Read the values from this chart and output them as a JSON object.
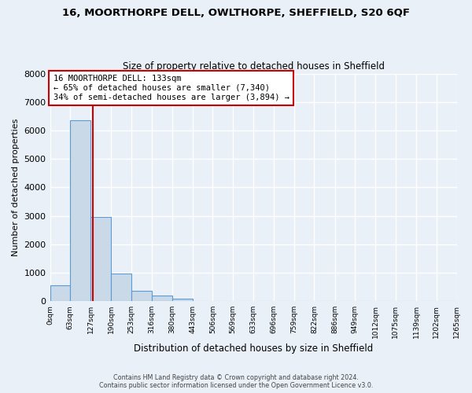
{
  "title": "16, MOORTHORPE DELL, OWLTHORPE, SHEFFIELD, S20 6QF",
  "subtitle": "Size of property relative to detached houses in Sheffield",
  "xlabel": "Distribution of detached houses by size in Sheffield",
  "ylabel": "Number of detached properties",
  "bar_color": "#c9d9e8",
  "bar_edge_color": "#5b9bd5",
  "background_color": "#eaf0f8",
  "grid_color": "#ffffff",
  "bin_edges": [
    0,
    63,
    127,
    190,
    253,
    316,
    380,
    443,
    506,
    569,
    633,
    696,
    759,
    822,
    886,
    949,
    1012,
    1075,
    1139,
    1202,
    1265
  ],
  "bin_labels": [
    "0sqm",
    "63sqm",
    "127sqm",
    "190sqm",
    "253sqm",
    "316sqm",
    "380sqm",
    "443sqm",
    "506sqm",
    "569sqm",
    "633sqm",
    "696sqm",
    "759sqm",
    "822sqm",
    "886sqm",
    "949sqm",
    "1012sqm",
    "1075sqm",
    "1139sqm",
    "1202sqm",
    "1265sqm"
  ],
  "bar_heights": [
    550,
    6350,
    2950,
    980,
    360,
    185,
    90,
    0,
    0,
    0,
    0,
    0,
    0,
    0,
    0,
    0,
    0,
    0,
    0,
    0
  ],
  "ylim": [
    0,
    8000
  ],
  "yticks": [
    0,
    1000,
    2000,
    3000,
    4000,
    5000,
    6000,
    7000,
    8000
  ],
  "vline_x": 133,
  "vline_color": "#cc0000",
  "annotation_text": "16 MOORTHORPE DELL: 133sqm\n← 65% of detached houses are smaller (7,340)\n34% of semi-detached houses are larger (3,894) →",
  "annotation_box_color": "#ffffff",
  "annotation_box_edge": "#cc0000",
  "footer_line1": "Contains HM Land Registry data © Crown copyright and database right 2024.",
  "footer_line2": "Contains public sector information licensed under the Open Government Licence v3.0."
}
